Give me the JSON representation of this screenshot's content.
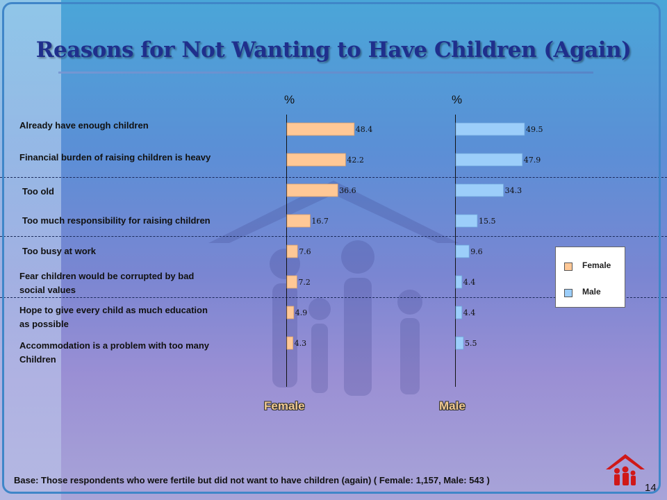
{
  "title": "Reasons for Not Wanting to Have Children (Again)",
  "chart_data": {
    "type": "bar",
    "orientation": "horizontal",
    "unit": "%",
    "categories": [
      "Already have enough children",
      "Financial burden of raising children is heavy",
      "Too old",
      "Too much responsibility for raising children",
      "Too busy at work",
      "Fear children would be corrupted by bad social values",
      "Hope to give every child as much education as possible",
      "Accommodation is a problem with too many Children"
    ],
    "series": [
      {
        "name": "Female",
        "values": [
          48.4,
          42.2,
          36.6,
          16.7,
          7.6,
          7.2,
          4.9,
          4.3
        ],
        "color": "#ffc896"
      },
      {
        "name": "Male",
        "values": [
          49.5,
          47.9,
          34.3,
          15.5,
          9.6,
          4.4,
          4.4,
          5.5
        ],
        "color": "#9ccefa"
      }
    ],
    "panel_labels": [
      "Female",
      "Male"
    ],
    "axis_unit_labels": [
      "%",
      "%"
    ],
    "legend": [
      "Female",
      "Male"
    ],
    "legend_position": "right"
  },
  "category_display": [
    [
      "Already have enough children"
    ],
    [
      "Financial burden of raising children is heavy"
    ],
    [
      "Too old"
    ],
    [
      "Too much responsibility for raising children"
    ],
    [
      "Too busy at work"
    ],
    [
      "Fear children would be corrupted by bad",
      "social values"
    ],
    [
      "Hope to give every child as much education",
      "as possible"
    ],
    [
      "Accommodation is a problem with too many",
      "Children"
    ]
  ],
  "footer": "Base: Those respondents who were fertile but did not want to have children (again)  ( Female: 1,157, Male: 543 )",
  "page_number": "14"
}
